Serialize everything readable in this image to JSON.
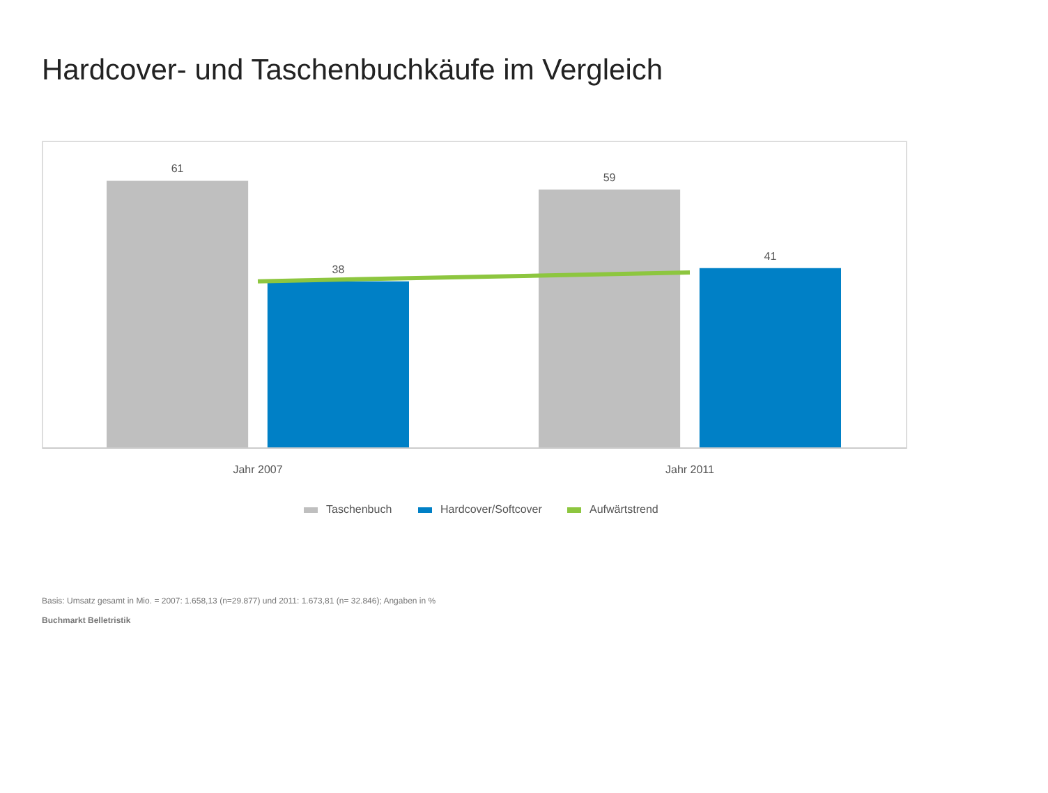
{
  "chart_data": {
    "type": "bar",
    "title": "Hardcover- und Taschenbuchkäufe im Vergleich",
    "categories": [
      "Jahr 2007",
      "Jahr 2011"
    ],
    "series": [
      {
        "name": "Taschenbuch",
        "color": "#bfbfbf",
        "values": [
          61,
          59
        ],
        "value_labels": [
          "61",
          "59"
        ]
      },
      {
        "name": "Hardcover/Softcover",
        "color": "#0080c6",
        "values": [
          38,
          41
        ],
        "value_labels": [
          "38",
          "41"
        ]
      },
      {
        "name": "Aufwärtstrend",
        "type": "line",
        "color": "#8dc63f",
        "values": [
          38,
          40
        ]
      }
    ],
    "grid": false,
    "legend": "bottom",
    "annotations": [
      "Basis: Umsatz gesamt in Mio. = 2007: 1.658,13 (n=29.877) und 2011: 1.673,81 (n= 32.846); Angaben in %",
      "Buchmarkt Belletristik"
    ]
  }
}
